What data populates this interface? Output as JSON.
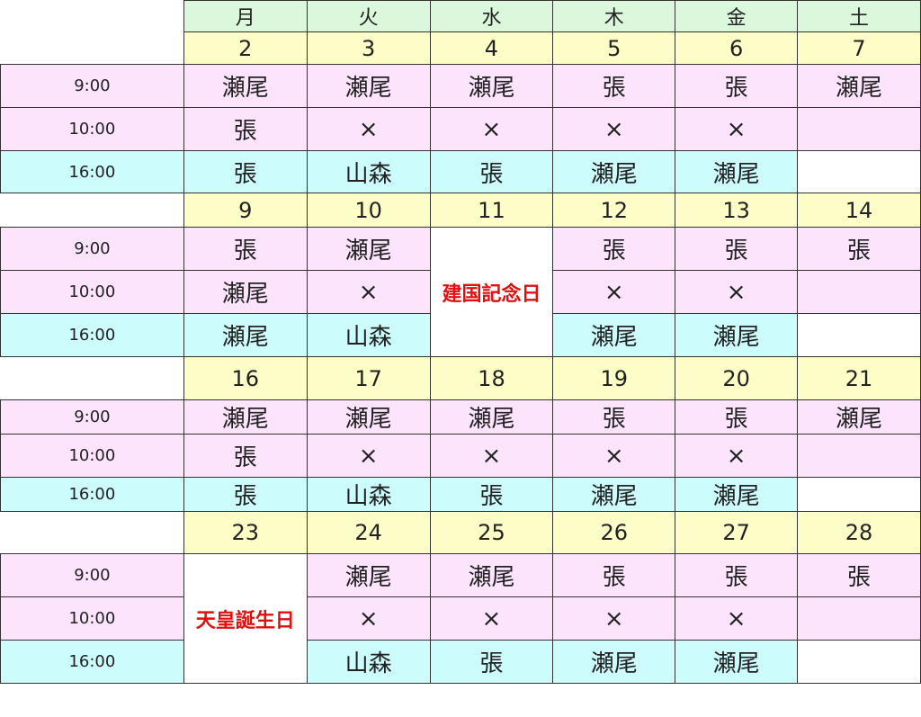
{
  "weekdays": [
    "月",
    "火",
    "水",
    "木",
    "金",
    "土"
  ],
  "colors": {
    "weekday_bg": "#dcf8dc",
    "date_bg": "#fdfdc8",
    "morning_bg": "#fde4fd",
    "evening_bg": "#ccfcfc",
    "holiday_text": "#e01010"
  },
  "weeks": [
    {
      "dates": [
        "2",
        "3",
        "4",
        "5",
        "6",
        "7"
      ],
      "slots": [
        {
          "time": "9:00",
          "cells": [
            "瀬尾",
            "瀬尾",
            "瀬尾",
            "張",
            "張",
            "瀬尾"
          ]
        },
        {
          "time": "10:00",
          "cells": [
            "張",
            "×",
            "×",
            "×",
            "×",
            ""
          ]
        },
        {
          "time": "16:00",
          "cells": [
            "張",
            "山森",
            "張",
            "瀬尾",
            "瀬尾",
            ""
          ]
        }
      ]
    },
    {
      "dates": [
        "9",
        "10",
        "11",
        "12",
        "13",
        "14"
      ],
      "holiday": {
        "col": 2,
        "label": "建国記念日"
      },
      "slots": [
        {
          "time": "9:00",
          "cells": [
            "張",
            "瀬尾",
            null,
            "張",
            "張",
            "張"
          ]
        },
        {
          "time": "10:00",
          "cells": [
            "瀬尾",
            "×",
            null,
            "×",
            "×",
            ""
          ]
        },
        {
          "time": "16:00",
          "cells": [
            "瀬尾",
            "山森",
            null,
            "瀬尾",
            "瀬尾",
            ""
          ]
        }
      ]
    },
    {
      "dates": [
        "16",
        "17",
        "18",
        "19",
        "20",
        "21"
      ],
      "slots": [
        {
          "time": "9:00",
          "cells": [
            "瀬尾",
            "瀬尾",
            "瀬尾",
            "張",
            "張",
            "瀬尾"
          ]
        },
        {
          "time": "10:00",
          "cells": [
            "張",
            "×",
            "×",
            "×",
            "×",
            ""
          ]
        },
        {
          "time": "16:00",
          "cells": [
            "張",
            "山森",
            "張",
            "瀬尾",
            "瀬尾",
            ""
          ]
        }
      ]
    },
    {
      "dates": [
        "23",
        "24",
        "25",
        "26",
        "27",
        "28"
      ],
      "holiday": {
        "col": 0,
        "label": "天皇誕生日"
      },
      "slots": [
        {
          "time": "9:00",
          "cells": [
            null,
            "瀬尾",
            "瀬尾",
            "張",
            "張",
            "張"
          ]
        },
        {
          "time": "10:00",
          "cells": [
            null,
            "×",
            "×",
            "×",
            "×",
            ""
          ]
        },
        {
          "time": "16:00",
          "cells": [
            null,
            "山森",
            "張",
            "瀬尾",
            "瀬尾",
            ""
          ]
        }
      ]
    }
  ]
}
